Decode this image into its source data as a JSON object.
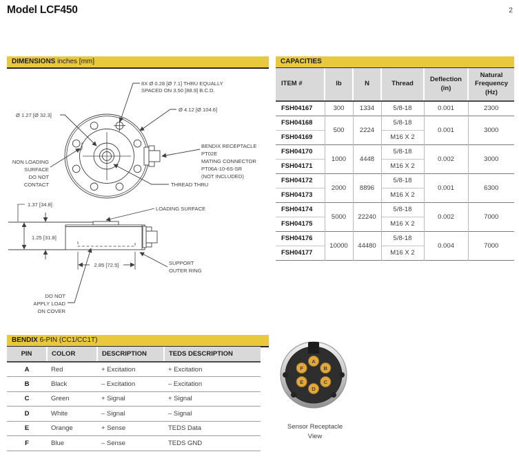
{
  "page": {
    "title": "Model LCF450",
    "number": "2"
  },
  "colors": {
    "accent_yellow": "#e8c83d",
    "header_gray": "#d9d9d9",
    "pin_gold": "#e2a83e",
    "line_dark": "#3f3f3f"
  },
  "dimensions": {
    "header_bold": "DIMENSIONS",
    "header_rest": " inches [mm]",
    "labels": {
      "bolt_pattern_line1": "8X Ø 0.28 [Ø 7.1] THRU EQUALLY",
      "bolt_pattern_line2": "SPACED ON 3.50 [88.9] B.C.D.",
      "outer_diameter": "Ø 4.12 [Ø 104.6]",
      "boss_diameter": "Ø 1.27 [Ø 32.3]",
      "non_loading": [
        "NON LOADING",
        "SURFACE",
        "DO NOT",
        "CONTACT"
      ],
      "receptacle": [
        "BENDIX RECEPTACLE",
        "PT02E",
        "MATING CONNECTOR",
        "PT06A-10-6S-SR",
        "(NOT INCLUDED)"
      ],
      "thread_thru": "THREAD THRU",
      "total_height": "1.37 [34.8]",
      "body_height": "1.25 [31.8]",
      "loading_surface": "LOADING SURFACE",
      "support_width": "2.85 [72.5]",
      "support_ring": [
        "SUPPORT",
        "OUTER RING"
      ],
      "no_load_cover": [
        "DO NOT",
        "APPLY LOAD",
        "ON COVER"
      ]
    }
  },
  "capacities": {
    "header": "CAPACITIES",
    "columns": [
      "ITEM #",
      "lb",
      "N",
      "Thread",
      "Deflection\n(in)",
      "Natural\nFrequency\n(Hz)"
    ],
    "groups": [
      {
        "lb": "300",
        "n": "1334",
        "deflection": "0.001",
        "frequency": "2300",
        "items": [
          {
            "item": "FSH04167",
            "thread": "5/8-18"
          }
        ]
      },
      {
        "lb": "500",
        "n": "2224",
        "deflection": "0.001",
        "frequency": "3000",
        "items": [
          {
            "item": "FSH04168",
            "thread": "5/8-18"
          },
          {
            "item": "FSH04169",
            "thread": "M16 X 2"
          }
        ]
      },
      {
        "lb": "1000",
        "n": "4448",
        "deflection": "0.002",
        "frequency": "3000",
        "items": [
          {
            "item": "FSH04170",
            "thread": "5/8-18"
          },
          {
            "item": "FSH04171",
            "thread": "M16 X 2"
          }
        ]
      },
      {
        "lb": "2000",
        "n": "8896",
        "deflection": "0.001",
        "frequency": "6300",
        "items": [
          {
            "item": "FSH04172",
            "thread": "5/8-18"
          },
          {
            "item": "FSH04173",
            "thread": "M16 X 2"
          }
        ]
      },
      {
        "lb": "5000",
        "n": "22240",
        "deflection": "0.002",
        "frequency": "7000",
        "items": [
          {
            "item": "FSH04174",
            "thread": "5/8-18"
          },
          {
            "item": "FSH04175",
            "thread": "M16 X 2"
          }
        ]
      },
      {
        "lb": "10000",
        "n": "44480",
        "deflection": "0.004",
        "frequency": "7000",
        "items": [
          {
            "item": "FSH04176",
            "thread": "5/8-18"
          },
          {
            "item": "FSH04177",
            "thread": "M16 X 2"
          }
        ]
      }
    ]
  },
  "bendix": {
    "header_bold": "BENDIX",
    "header_rest": " 6-PIN (CC1/CC1T)",
    "columns": [
      "PIN",
      "COLOR",
      "DESCRIPTION",
      "TEDS DESCRIPTION"
    ],
    "rows": [
      [
        "A",
        "Red",
        "+ Excitation",
        "+ Excitation"
      ],
      [
        "B",
        "Black",
        "– Excitation",
        "– Excitation"
      ],
      [
        "C",
        "Green",
        "+ Signal",
        "+ Signal"
      ],
      [
        "D",
        "White",
        "– Signal",
        "– Signal"
      ],
      [
        "E",
        "Orange",
        "+ Sense",
        "TEDS Data"
      ],
      [
        "F",
        "Blue",
        "– Sense",
        "TEDS GND"
      ]
    ]
  },
  "receptacle": {
    "caption": [
      "Sensor Receptacle",
      "View"
    ],
    "pins": [
      "A",
      "B",
      "C",
      "D",
      "E",
      "F"
    ]
  }
}
